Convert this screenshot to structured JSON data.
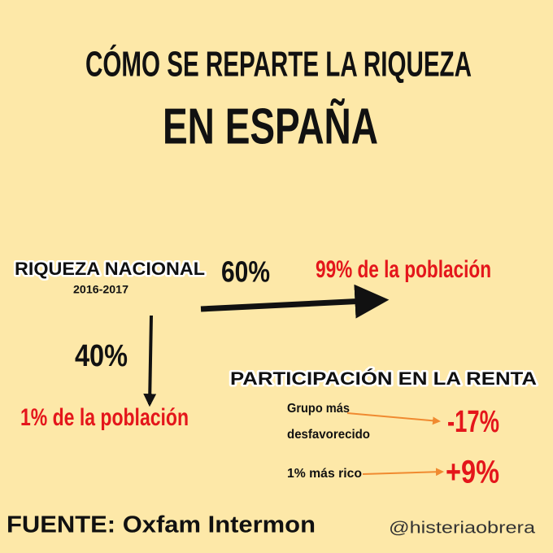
{
  "header": {
    "title_line1": "CÓMO SE REPARTE LA RIQUEZA",
    "title_line2": "EN ESPAÑA"
  },
  "wealth": {
    "label": "RIQUEZA NACIONAL",
    "period": "2016-2017",
    "majority": {
      "share": "60%",
      "group": "99% de la población"
    },
    "minority": {
      "share": "40%",
      "group": "1% de la población"
    }
  },
  "income": {
    "title": "PARTICIPACIÓN EN LA RENTA",
    "rows": [
      {
        "group": [
          "Grupo más",
          "desfavorecido"
        ],
        "change": "-17%"
      },
      {
        "group": [
          "1% más rico"
        ],
        "change": "+9%"
      }
    ]
  },
  "footer": {
    "source": "FUENTE: Oxfam Intermon",
    "handle": "@histeriaobrera"
  }
}
